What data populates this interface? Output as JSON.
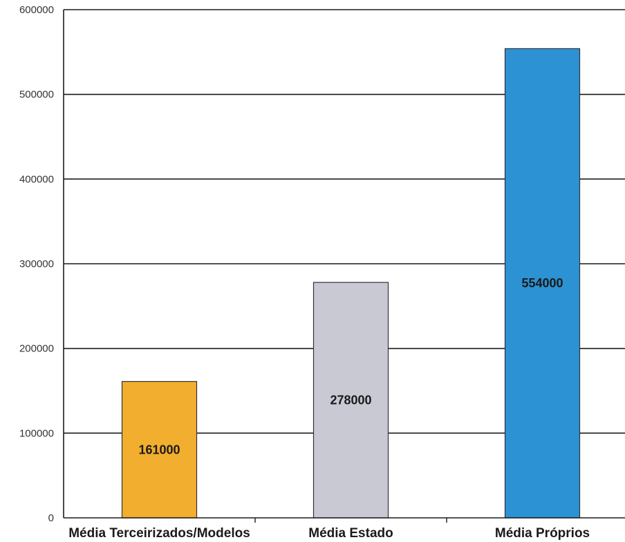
{
  "chart_data": {
    "type": "bar",
    "categories": [
      "Média Terceirizados/Modelos",
      "Média Estado",
      "Média Próprios"
    ],
    "values": [
      161000,
      278000,
      554000
    ],
    "data_labels": [
      "161000",
      "278000",
      "554000"
    ],
    "title": "",
    "xlabel": "",
    "ylabel": "",
    "ylim": [
      0,
      600000
    ],
    "yticks": [
      0,
      100000,
      200000,
      300000,
      400000,
      500000,
      600000
    ],
    "ytick_labels": [
      "0",
      "100000",
      "200000",
      "300000",
      "400000",
      "500000",
      "600000"
    ],
    "grid": true,
    "legend": "none",
    "bar_colors": [
      "#f2ae2e",
      "#c9c9d4",
      "#2c92d4"
    ],
    "bar_edge_color": "#333333",
    "grid_color": "#1a1a1a"
  }
}
